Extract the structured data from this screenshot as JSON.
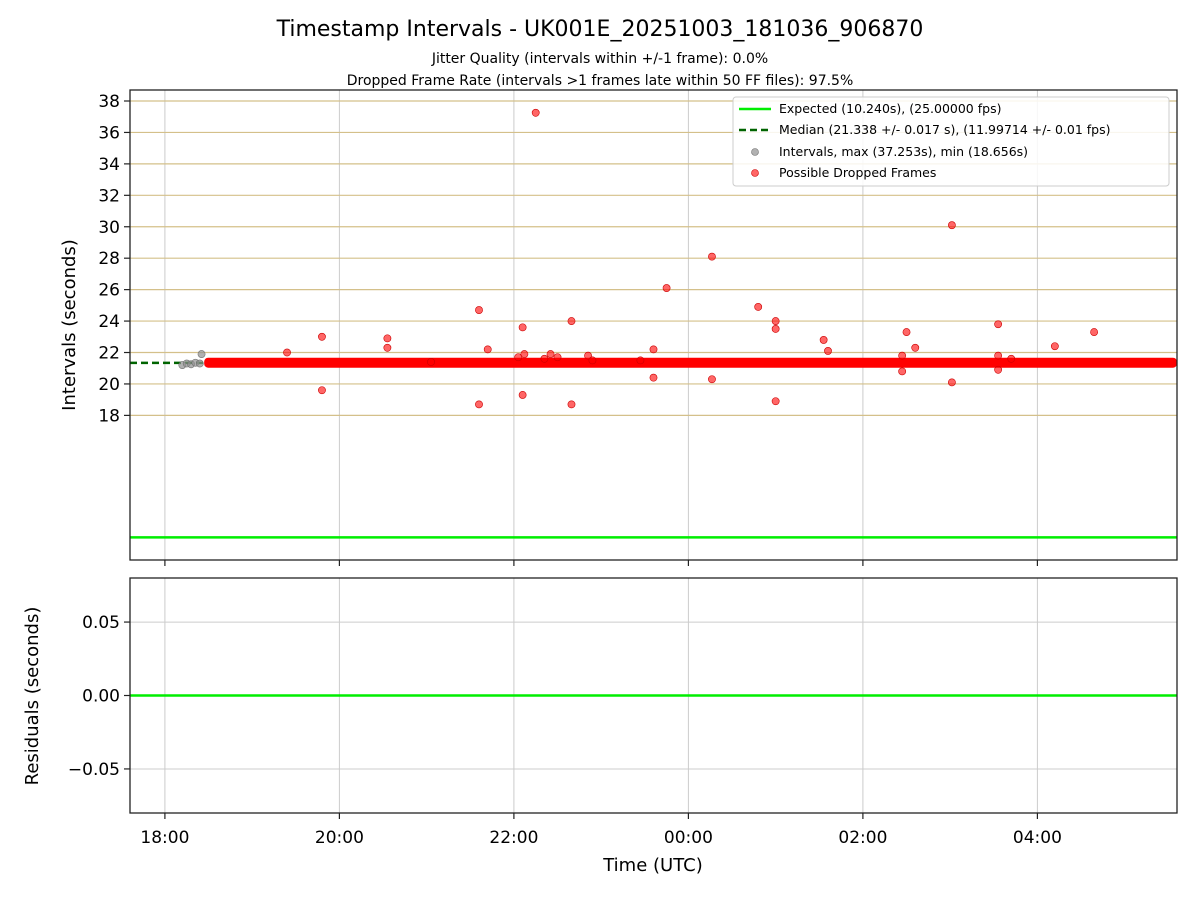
{
  "chart_data": [
    {
      "type": "scatter",
      "title": "Timestamp Intervals - UK001E_20251003_181036_906870",
      "subtitle_lines": [
        "Jitter Quality (intervals within +/-1 frame): 0.0%",
        "Dropped Frame Rate (intervals >1 frames late within 50 FF files): 97.5%"
      ],
      "ylabel": "Intervals (seconds)",
      "ylim": [
        8.8,
        38.7
      ],
      "yticks": [
        18,
        20,
        22,
        24,
        26,
        28,
        30,
        32,
        34,
        36,
        38
      ],
      "ytick_labels": [
        "18",
        "20",
        "22",
        "24",
        "26",
        "28",
        "30",
        "32",
        "34",
        "36",
        "38"
      ],
      "xlim_hours": [
        17.6,
        29.6
      ],
      "xticks_hours": [
        18,
        20,
        22,
        24,
        26,
        28
      ],
      "grid": true,
      "legend_position": "top-right",
      "legend": [
        "Expected (10.240s), (25.00000 fps)",
        "Median (21.338 +/- 0.017 s), (11.99714 +/- 0.01 fps)",
        "Intervals, max (37.253s), min (18.656s)",
        "Possible Dropped Frames"
      ],
      "expected_value": 10.24,
      "median_value": 21.338,
      "median_range_hours": [
        17.6,
        18.45
      ],
      "dense_band": {
        "x_start": 18.45,
        "x_end": 29.6,
        "value": 21.35
      },
      "interval_points": [
        {
          "x": 18.2,
          "y": 21.2
        },
        {
          "x": 18.25,
          "y": 21.3
        },
        {
          "x": 18.3,
          "y": 21.25
        },
        {
          "x": 18.35,
          "y": 21.35
        },
        {
          "x": 18.4,
          "y": 21.3
        },
        {
          "x": 18.42,
          "y": 21.9
        }
      ],
      "dropped_points": [
        {
          "x": 19.4,
          "y": 22.0
        },
        {
          "x": 19.8,
          "y": 23.0
        },
        {
          "x": 19.8,
          "y": 19.6
        },
        {
          "x": 20.55,
          "y": 22.9
        },
        {
          "x": 20.55,
          "y": 22.3
        },
        {
          "x": 21.05,
          "y": 21.4
        },
        {
          "x": 21.6,
          "y": 24.7
        },
        {
          "x": 21.6,
          "y": 18.7
        },
        {
          "x": 21.7,
          "y": 22.2
        },
        {
          "x": 22.1,
          "y": 23.6
        },
        {
          "x": 22.1,
          "y": 19.3
        },
        {
          "x": 22.05,
          "y": 21.7
        },
        {
          "x": 22.12,
          "y": 21.9
        },
        {
          "x": 22.25,
          "y": 37.25
        },
        {
          "x": 22.35,
          "y": 21.6
        },
        {
          "x": 22.42,
          "y": 21.9
        },
        {
          "x": 22.5,
          "y": 21.7
        },
        {
          "x": 22.66,
          "y": 24.0
        },
        {
          "x": 22.66,
          "y": 18.7
        },
        {
          "x": 22.85,
          "y": 21.8
        },
        {
          "x": 22.9,
          "y": 21.5
        },
        {
          "x": 23.45,
          "y": 21.5
        },
        {
          "x": 23.6,
          "y": 22.2
        },
        {
          "x": 23.6,
          "y": 20.4
        },
        {
          "x": 23.75,
          "y": 26.1
        },
        {
          "x": 24.27,
          "y": 28.1
        },
        {
          "x": 24.27,
          "y": 20.3
        },
        {
          "x": 24.8,
          "y": 24.9
        },
        {
          "x": 25.0,
          "y": 24.0
        },
        {
          "x": 25.0,
          "y": 23.5
        },
        {
          "x": 25.0,
          "y": 18.9
        },
        {
          "x": 25.55,
          "y": 22.8
        },
        {
          "x": 25.6,
          "y": 22.1
        },
        {
          "x": 26.45,
          "y": 21.8
        },
        {
          "x": 26.45,
          "y": 20.8
        },
        {
          "x": 26.5,
          "y": 23.3
        },
        {
          "x": 26.6,
          "y": 22.3
        },
        {
          "x": 27.02,
          "y": 30.1
        },
        {
          "x": 27.02,
          "y": 20.1
        },
        {
          "x": 27.55,
          "y": 23.8
        },
        {
          "x": 27.55,
          "y": 21.8
        },
        {
          "x": 27.55,
          "y": 20.9
        },
        {
          "x": 27.7,
          "y": 21.6
        },
        {
          "x": 28.2,
          "y": 22.4
        },
        {
          "x": 28.65,
          "y": 23.3
        }
      ]
    },
    {
      "type": "line",
      "ylabel": "Residuals (seconds)",
      "xlabel": "Time (UTC)",
      "ylim": [
        -0.08,
        0.08
      ],
      "yticks": [
        -0.05,
        0.0,
        0.05
      ],
      "ytick_labels": [
        "−0.05",
        "0.00",
        "0.05"
      ],
      "xlim_hours": [
        17.6,
        29.6
      ],
      "xticks_hours": [
        18,
        20,
        22,
        24,
        26,
        28
      ],
      "xtick_labels": [
        "18:00",
        "20:00",
        "22:00",
        "00:00",
        "02:00",
        "04:00"
      ],
      "residual_value": 0.0,
      "grid": true
    }
  ],
  "colors": {
    "expected": "#00ee00",
    "median": "#006400",
    "dropped": "#ff0000",
    "intervals": "#909090",
    "ygrid_top": "#d4c08a",
    "grid": "#cccccc",
    "axes": "#222222"
  }
}
